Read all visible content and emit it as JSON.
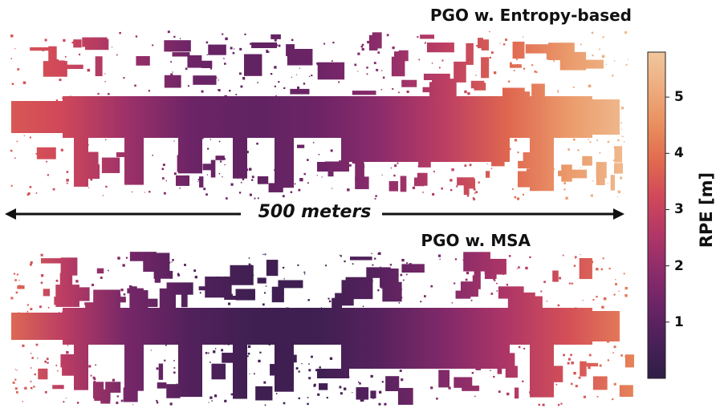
{
  "chart_data": {
    "type": "heatmap",
    "panels": [
      {
        "title": "PGO w. Entropy-based",
        "rpe_profile": {
          "along_track_fraction": [
            0.0,
            0.1,
            0.2,
            0.3,
            0.4,
            0.5,
            0.6,
            0.7,
            0.8,
            0.9,
            1.0
          ],
          "rpe_m": [
            3.6,
            3.2,
            2.2,
            1.3,
            1.1,
            1.3,
            1.9,
            2.8,
            3.8,
            4.8,
            5.6
          ]
        }
      },
      {
        "title": "PGO w. MSA",
        "rpe_profile": {
          "along_track_fraction": [
            0.0,
            0.1,
            0.2,
            0.3,
            0.4,
            0.5,
            0.6,
            0.7,
            0.8,
            0.9,
            1.0
          ],
          "rpe_m": [
            4.0,
            2.8,
            1.5,
            0.8,
            0.4,
            0.4,
            0.9,
            1.7,
            2.5,
            3.4,
            4.3
          ]
        }
      }
    ],
    "scale_bar": {
      "label": "500 meters",
      "length_m": 500
    },
    "colorbar": {
      "label": "RPE [m]",
      "ticks": [
        "1",
        "2",
        "3",
        "4",
        "5"
      ],
      "tick_values": [
        1,
        2,
        3,
        4,
        5
      ],
      "range": [
        0,
        5.8
      ],
      "colormap": "flare",
      "colors": [
        "#2e1e45",
        "#4a2059",
        "#6b2466",
        "#8e2c6b",
        "#b23767",
        "#d0485a",
        "#e16a4e",
        "#e98f5e",
        "#eeac7e",
        "#f1c69d"
      ]
    }
  }
}
